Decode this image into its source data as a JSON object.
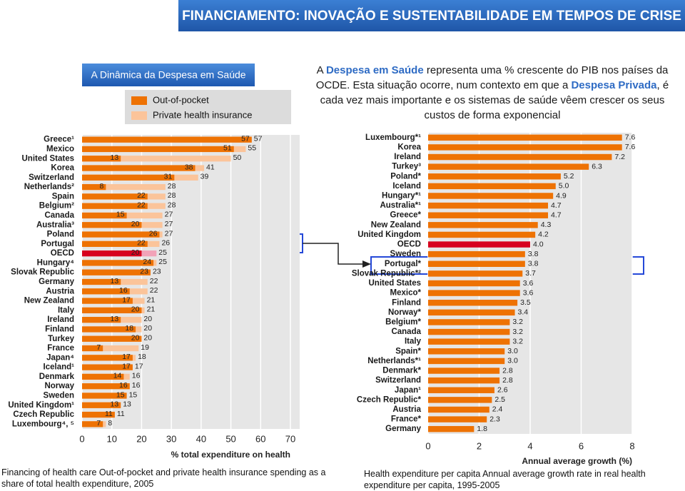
{
  "header": {
    "title": "FINANCIAMENTO: INOVAÇÃO E SUSTENTABILIDADE EM TEMPOS DE CRISE"
  },
  "section_title": "A Dinâmica da Despesa em Saúde",
  "intro": [
    "A ",
    "Despesa em Saúde",
    " representa uma % crescente do PIB nos países da OCDE. Esta situação ocorre, num contexto em que a ",
    "Despesa Privada",
    ", é cada vez mais importante e os sistemas de saúde vêem crescer os seus custos de forma exponencial"
  ],
  "chart_data": [
    {
      "type": "bar",
      "orientation": "horizontal",
      "caption": "Financing of health care Out-of-pocket and private health insurance spending as a share of total health expenditure, 2005",
      "xlabel": "% total expenditure on health",
      "categories": [
        "Greece¹",
        "Mexico",
        "United States",
        "Korea",
        "Switzerland",
        "Netherlands²",
        "Spain",
        "Belgium²",
        "Canada",
        "Australia³",
        "Poland",
        "Portugal",
        "OECD",
        "Hungary⁴",
        "Slovak Republic",
        "Germany",
        "Austria",
        "New Zealand",
        "Italy",
        "Ireland",
        "Finland",
        "Turkey",
        "France",
        "Japan⁴",
        "Iceland¹",
        "Denmark",
        "Norway",
        "Sweden",
        "United Kingdom¹",
        "Czech Republic",
        "Luxembourg⁴, ⁵"
      ],
      "series": [
        {
          "name": "Out-of-pocket",
          "values": [
            57,
            51,
            13,
            38,
            31,
            8,
            22,
            22,
            15,
            20,
            26,
            22,
            20,
            24,
            23,
            13,
            16,
            17,
            20,
            13,
            18,
            20,
            7,
            17,
            17,
            14,
            16,
            15,
            13,
            11,
            7
          ],
          "colors": [
            "#ee7203",
            "#ee7203",
            "#ee7203",
            "#ee7203",
            "#ee7203",
            "#ee7203",
            "#ee7203",
            "#ee7203",
            "#ee7203",
            "#ee7203",
            "#ee7203",
            "#ee7203",
            "#d7001e",
            "#ee7203",
            "#ee7203",
            "#ee7203",
            "#ee7203",
            "#ee7203",
            "#ee7203",
            "#ee7203",
            "#ee7203",
            "#ee7203",
            "#ee7203",
            "#ee7203",
            "#ee7203",
            "#ee7203",
            "#ee7203",
            "#ee7203",
            "#ee7203",
            "#ee7203",
            "#ee7203"
          ]
        },
        {
          "name": "Private health insurance",
          "colors": [
            "#fbc49a",
            "#fbc49a",
            "#fbc49a",
            "#fbc49a",
            "#fbc49a",
            "#fbc49a",
            "#fbc49a",
            "#fbc49a",
            "#fbc49a",
            "#fbc49a",
            "#fbc49a",
            "#fbc49a",
            "#f2a3b8",
            "#fbc49a",
            "#fbc49a",
            "#fbc49a",
            "#fbc49a",
            "#fbc49a",
            "#fbc49a",
            "#fbc49a",
            "#fbc49a",
            "#fbc49a",
            "#fbc49a",
            "#fbc49a",
            "#fbc49a",
            "#fbc49a",
            "#fbc49a",
            "#fbc49a",
            "#fbc49a",
            "#fbc49a",
            "#fbc49a"
          ]
        }
      ],
      "totals": [
        57,
        55,
        50,
        41,
        39,
        28,
        28,
        28,
        27,
        27,
        27,
        26,
        25,
        25,
        23,
        22,
        22,
        21,
        21,
        20,
        20,
        20,
        19,
        18,
        17,
        16,
        16,
        15,
        13,
        11,
        8
      ],
      "xlim": [
        0,
        70
      ],
      "xticks": [
        0,
        10,
        20,
        30,
        40,
        50,
        60,
        70
      ],
      "grid": true
    },
    {
      "type": "bar",
      "orientation": "horizontal",
      "caption": "Health expenditure per capita Annual average growth rate in real health expenditure per capita, 1995-2005",
      "xlabel": "Annual average growth (%)",
      "categories": [
        "Luxembourg*¹",
        "Korea",
        "Ireland",
        "Turkey³",
        "Poland*",
        "Iceland",
        "Hungary*¹",
        "Australia*¹",
        "Greece*",
        "New Zealand",
        "United Kingdom",
        "OECD",
        "Sweden",
        "Portugal*",
        "Slovak Republic*²",
        "United States",
        "Mexico*",
        "Finland",
        "Norway*",
        "Belgium*",
        "Canada",
        "Italy",
        "Spain*",
        "Netherlands*¹",
        "Denmark*",
        "Switzerland",
        "Japan¹",
        "Czech Republic*",
        "Austria",
        "France*",
        "Germany"
      ],
      "values": [
        7.6,
        7.6,
        7.2,
        6.3,
        5.2,
        5.0,
        4.9,
        4.7,
        4.7,
        4.3,
        4.2,
        4.0,
        3.8,
        3.8,
        3.7,
        3.6,
        3.6,
        3.5,
        3.4,
        3.2,
        3.2,
        3.2,
        3.0,
        3.0,
        2.8,
        2.8,
        2.6,
        2.5,
        2.4,
        2.3,
        1.8
      ],
      "value_labels": [
        "7.6",
        "7.6",
        "7.2",
        "6.3",
        "5.2",
        "5.0",
        "4.9",
        "4.7",
        "4.7",
        "4.3",
        "4.2",
        "4.0",
        "3.8",
        "3.8",
        "3.7",
        "3.6",
        "3.6",
        "3.5",
        "3.4",
        "3.2",
        "3.2",
        "3.2",
        "3.0",
        "3.0",
        "2.8",
        "2.8",
        "2.6",
        "2.5",
        "2.4",
        "2.3",
        "1.8"
      ],
      "colors": [
        "#ee7203",
        "#ee7203",
        "#ee7203",
        "#ee7203",
        "#ee7203",
        "#ee7203",
        "#ee7203",
        "#ee7203",
        "#ee7203",
        "#ee7203",
        "#ee7203",
        "#d7001e",
        "#ee7203",
        "#ee7203",
        "#ee7203",
        "#ee7203",
        "#ee7203",
        "#ee7203",
        "#ee7203",
        "#ee7203",
        "#ee7203",
        "#ee7203",
        "#ee7203",
        "#ee7203",
        "#ee7203",
        "#ee7203",
        "#ee7203",
        "#ee7203",
        "#ee7203",
        "#ee7203",
        "#ee7203"
      ],
      "xlim": [
        0,
        8
      ],
      "xticks": [
        0,
        2,
        4,
        6,
        8
      ],
      "grid": true
    }
  ]
}
